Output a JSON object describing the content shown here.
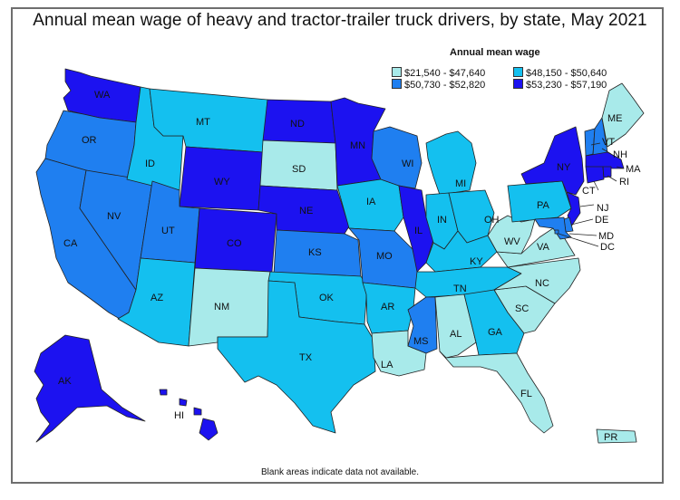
{
  "title": "Annual mean wage of heavy and tractor-trailer truck drivers, by state, May 2021",
  "legend": {
    "title": "Annual mean wage",
    "items": [
      {
        "label": "$21,540 - $47,640",
        "color": "#a8eaea"
      },
      {
        "label": "$48,150 - $50,640",
        "color": "#14c0ef"
      },
      {
        "label": "$50,730 - $52,820",
        "color": "#1f7ff0"
      },
      {
        "label": "$53,230 - $57,190",
        "color": "#1c12f0"
      }
    ]
  },
  "note": "Blank areas indicate data not available.",
  "states": {
    "WA": 4,
    "OR": 3,
    "CA": 3,
    "NV": 3,
    "ID": 2,
    "MT": 2,
    "WY": 4,
    "UT": 3,
    "AZ": 2,
    "NM": 1,
    "CO": 4,
    "ND": 4,
    "SD": 1,
    "NE": 4,
    "KS": 3,
    "OK": 2,
    "TX": 2,
    "MN": 4,
    "IA": 2,
    "MO": 3,
    "AR": 2,
    "LA": 1,
    "WI": 3,
    "IL": 4,
    "MI": 2,
    "IN": 2,
    "OH": 2,
    "KY": 2,
    "TN": 2,
    "MS": 3,
    "AL": 1,
    "GA": 2,
    "FL": 1,
    "SC": 1,
    "NC": 1,
    "VA": 1,
    "WV": 1,
    "PA": 2,
    "NY": 4,
    "NJ": 4,
    "DE": 3,
    "MD": 3,
    "DC": 3,
    "CT": 4,
    "RI": 4,
    "MA": 4,
    "VT": 3,
    "NH": 3,
    "ME": 1,
    "AK": 4,
    "HI": 4,
    "PR": 1
  }
}
